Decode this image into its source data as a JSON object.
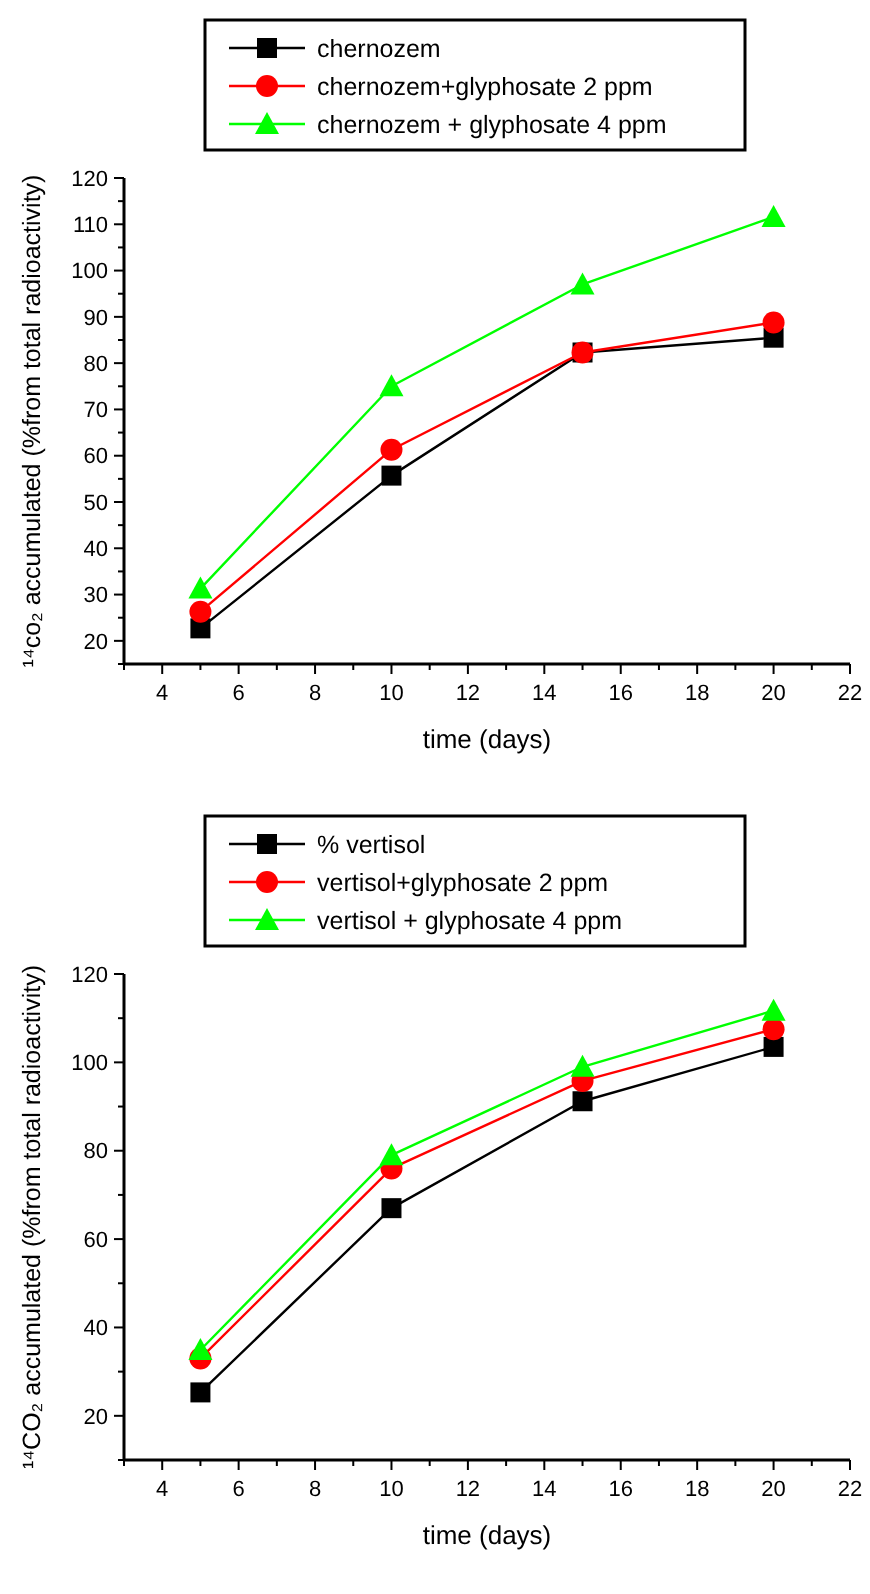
{
  "chart_data": [
    {
      "type": "line",
      "xlabel": "time (days)",
      "ylabel": "¹⁴co₂ accumulated (%from total radioactivity)",
      "x": [
        5,
        10,
        15,
        20
      ],
      "series": [
        {
          "name": "chernozem",
          "color": "#000000",
          "marker": "square",
          "values": [
            22.7,
            55.7,
            82.3,
            85.5
          ]
        },
        {
          "name": "chernozem+glyphosate 2 ppm",
          "color": "#ff0000",
          "marker": "circle",
          "values": [
            26.3,
            61.3,
            82.3,
            88.8
          ]
        },
        {
          "name": "chernozem + glyphosate 4 ppm",
          "color": "#00ff00",
          "marker": "triangle",
          "values": [
            31.3,
            75,
            97,
            111.6
          ]
        }
      ],
      "xlim": [
        3,
        22
      ],
      "xticks": [
        {
          "value": 3,
          "label": null
        },
        4,
        {
          "value": 5,
          "label": null
        },
        6,
        {
          "value": 7,
          "label": null
        },
        8,
        {
          "value": 9,
          "label": null
        },
        10,
        {
          "value": 11,
          "label": null
        },
        12,
        {
          "value": 13,
          "label": null
        },
        14,
        {
          "value": 15,
          "label": null
        },
        16,
        {
          "value": 17,
          "label": null
        },
        18,
        {
          "value": 19,
          "label": null
        },
        20,
        {
          "value": 21,
          "label": null
        },
        22
      ],
      "ylim": [
        15,
        120
      ],
      "yticks": [
        {
          "value": 15,
          "label": null
        },
        20,
        {
          "value": 25,
          "label": null
        },
        30,
        {
          "value": 35,
          "label": null
        },
        40,
        {
          "value": 45,
          "label": null
        },
        50,
        {
          "value": 55,
          "label": null
        },
        60,
        {
          "value": 65,
          "label": null
        },
        70,
        {
          "value": 75,
          "label": null
        },
        80,
        {
          "value": 85,
          "label": null
        },
        90,
        {
          "value": 95,
          "label": null
        },
        100,
        {
          "value": 105,
          "label": null
        },
        110,
        {
          "value": 115,
          "label": null
        },
        120
      ],
      "grid": false,
      "legend": "top",
      "line_style": "solid"
    },
    {
      "type": "line",
      "xlabel": "time (days)",
      "ylabel": "¹⁴CO₂ accumulated (%from total radioactivity)",
      "x": [
        5,
        10,
        15,
        20
      ],
      "series": [
        {
          "name": "% vertisol",
          "color": "#000000",
          "marker": "square",
          "values": [
            25.3,
            67,
            91.2,
            103.5
          ]
        },
        {
          "name": "vertisol+glyphosate 2 ppm",
          "color": "#ff0000",
          "marker": "circle",
          "values": [
            33,
            76,
            95.8,
            107.5
          ]
        },
        {
          "name": "vertisol + glyphosate 4 ppm",
          "color": "#00ff00",
          "marker": "triangle",
          "values": [
            34.9,
            79,
            99,
            111.7
          ]
        }
      ],
      "xlim": [
        3,
        22
      ],
      "xticks": [
        {
          "value": 3,
          "label": null
        },
        4,
        {
          "value": 5,
          "label": null
        },
        6,
        {
          "value": 7,
          "label": null
        },
        8,
        {
          "value": 9,
          "label": null
        },
        10,
        {
          "value": 11,
          "label": null
        },
        12,
        {
          "value": 13,
          "label": null
        },
        14,
        {
          "value": 15,
          "label": null
        },
        16,
        {
          "value": 17,
          "label": null
        },
        18,
        {
          "value": 19,
          "label": null
        },
        20,
        {
          "value": 21,
          "label": null
        },
        22
      ],
      "ylim": [
        10,
        120
      ],
      "yticks": [
        {
          "value": 10,
          "label": null
        },
        20,
        {
          "value": 30,
          "label": null
        },
        40,
        {
          "value": 50,
          "label": null
        },
        60,
        {
          "value": 70,
          "label": null
        },
        80,
        {
          "value": 90,
          "label": null
        },
        100,
        {
          "value": 110,
          "label": null
        },
        120
      ],
      "grid": false,
      "legend": "top",
      "line_style": "solid"
    }
  ]
}
